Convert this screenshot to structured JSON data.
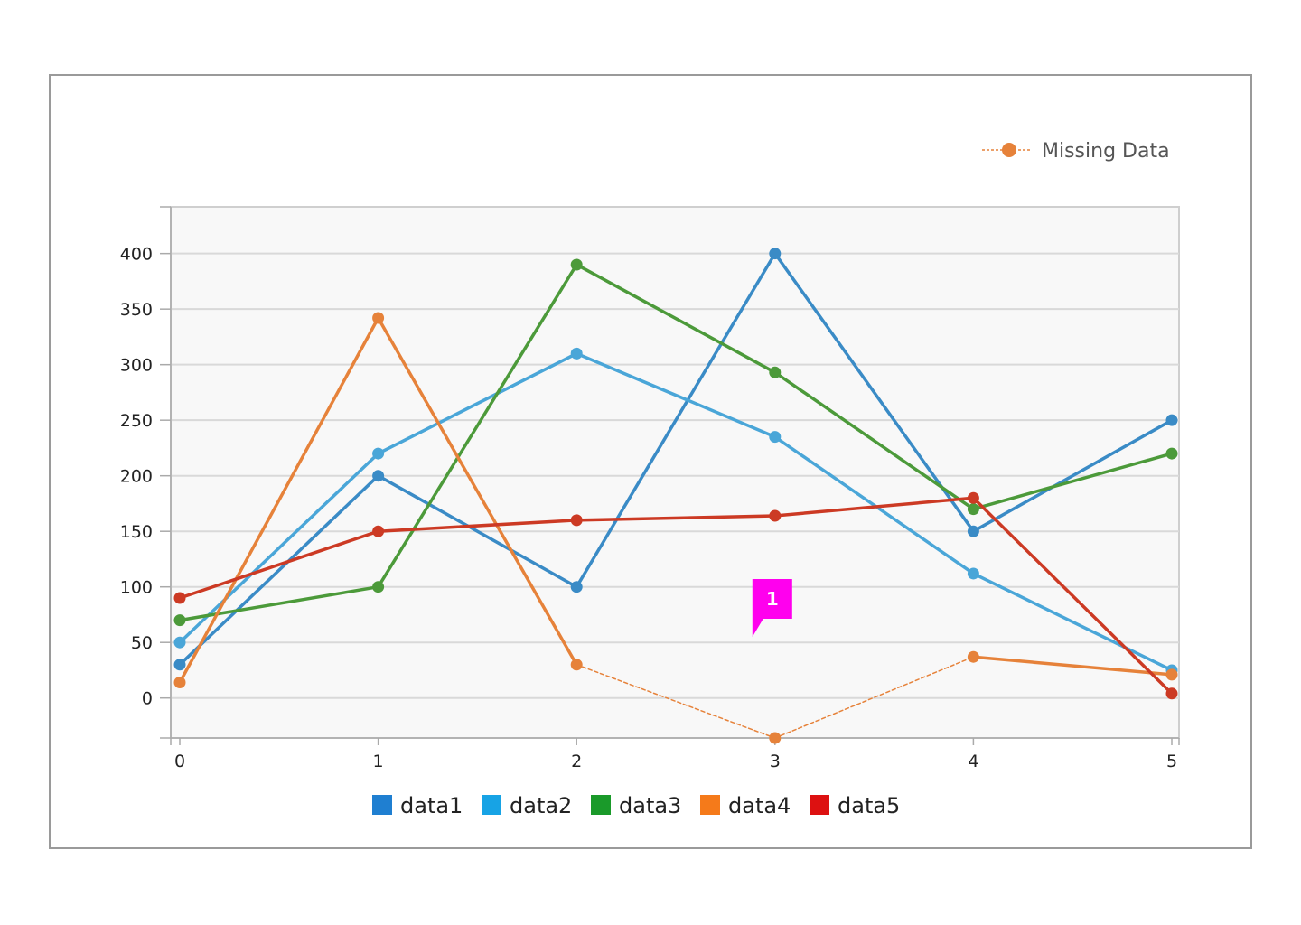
{
  "chart_data": {
    "type": "line",
    "title": "",
    "xlabel": "",
    "ylabel": "",
    "x": [
      0,
      1,
      2,
      3,
      4,
      5
    ],
    "x_ticks": [
      "0",
      "1",
      "2",
      "3",
      "4",
      "5"
    ],
    "xlim": [
      0,
      5
    ],
    "y_ticks": [
      "0",
      "50",
      "100",
      "150",
      "200",
      "250",
      "300",
      "350",
      "400"
    ],
    "y_tick_values": [
      0,
      50,
      100,
      150,
      200,
      250,
      300,
      350,
      400
    ],
    "ylim": [
      -36,
      442
    ],
    "grid": "horizontal",
    "plot_background": "#f8f8f8",
    "series": [
      {
        "name": "data1",
        "color": "#3a8bc6",
        "legend_color": "#1f7fd1",
        "values": [
          30,
          200,
          100,
          400,
          150,
          250
        ]
      },
      {
        "name": "data2",
        "color": "#4aa6d8",
        "legend_color": "#17a3e5",
        "values": [
          50,
          220,
          310,
          235,
          112,
          25
        ]
      },
      {
        "name": "data3",
        "color": "#4c9a3a",
        "legend_color": "#1a9a2a",
        "values": [
          70,
          100,
          390,
          293,
          170,
          220
        ]
      },
      {
        "name": "data4",
        "color": "#e6823a",
        "legend_color": "#f57a1a",
        "values": [
          14,
          342,
          30,
          -36,
          37,
          21
        ],
        "missing_segments": [
          [
            2,
            3
          ],
          [
            3,
            4
          ]
        ]
      },
      {
        "name": "data5",
        "color": "#cc3a24",
        "legend_color": "#dd1111",
        "values": [
          90,
          150,
          160,
          164,
          180,
          4
        ]
      }
    ],
    "legend": {
      "position": "bottom-center"
    },
    "missing_legend": {
      "label": "Missing Data",
      "color": "#e6823a",
      "position": "top-right"
    },
    "annotations": [
      {
        "label": "1",
        "x": 3,
        "y": 55,
        "color": "#ff00ee"
      }
    ]
  }
}
